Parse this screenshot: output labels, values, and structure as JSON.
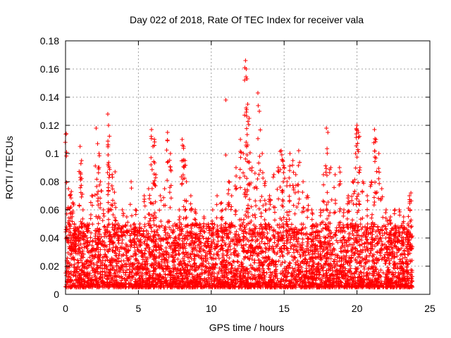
{
  "chart_data": {
    "type": "scatter",
    "title": "Day 022 of 2018, Rate Of TEC Index for receiver vala",
    "xlabel": "GPS time / hours",
    "ylabel": "ROTI / TECUs",
    "xlim": [
      0,
      25
    ],
    "ylim": [
      0,
      0.18
    ],
    "xticks": [
      0,
      5,
      10,
      15,
      20,
      25
    ],
    "xtick_labels": [
      "0",
      "5",
      "10",
      "15",
      "20",
      "25"
    ],
    "yticks": [
      0,
      0.02,
      0.04,
      0.06,
      0.08,
      0.1,
      0.12,
      0.14,
      0.16,
      0.18
    ],
    "ytick_labels": [
      "0",
      "0.02",
      "0.04",
      "0.06",
      "0.08",
      "0.1",
      "0.12",
      "0.14",
      "0.16",
      "0.18"
    ],
    "grid": true,
    "marker": "+",
    "series": [
      {
        "name": "ROTI",
        "color": "#ff0000",
        "x": [
          0.05,
          0.2,
          0.3,
          0.4,
          0.5,
          0.6,
          0.7,
          0.9,
          1.0,
          1.1,
          1.2,
          1.5,
          1.8,
          2.1,
          2.2,
          2.25,
          2.3,
          2.4,
          2.6,
          2.9,
          2.95,
          3.0,
          3.2,
          3.4,
          3.6,
          3.9,
          4.2,
          4.5,
          4.8,
          5.1,
          5.4,
          5.7,
          5.9,
          6.0,
          6.1,
          6.2,
          6.5,
          6.8,
          7.0,
          7.2,
          7.5,
          7.8,
          8.0,
          8.1,
          8.2,
          8.3,
          8.6,
          8.9,
          9.2,
          9.5,
          9.8,
          10.1,
          10.4,
          10.7,
          11.0,
          11.2,
          11.4,
          11.7,
          12.0,
          12.2,
          12.35,
          12.4,
          12.45,
          12.5,
          12.6,
          12.8,
          13.0,
          13.2,
          13.3,
          13.5,
          13.7,
          14.0,
          14.3,
          14.6,
          14.8,
          14.9,
          15.0,
          15.2,
          15.4,
          15.6,
          15.8,
          16.0,
          16.3,
          16.6,
          16.9,
          17.2,
          17.5,
          17.7,
          17.9,
          18.0,
          18.2,
          18.5,
          18.8,
          19.1,
          19.4,
          19.7,
          19.9,
          20.0,
          20.1,
          20.2,
          20.4,
          20.7,
          21.0,
          21.2,
          21.3,
          21.5,
          21.7,
          22.0,
          22.3,
          22.6,
          22.9,
          23.2,
          23.5,
          23.6,
          23.7
        ],
        "y": [
          0.114,
          0.075,
          0.07,
          0.073,
          0.065,
          0.05,
          0.04,
          0.045,
          0.105,
          0.095,
          0.06,
          0.05,
          0.07,
          0.118,
          0.107,
          0.09,
          0.1,
          0.08,
          0.06,
          0.128,
          0.12,
          0.09,
          0.085,
          0.087,
          0.05,
          0.06,
          0.055,
          0.08,
          0.06,
          0.05,
          0.07,
          0.075,
          0.117,
          0.105,
          0.11,
          0.085,
          0.07,
          0.075,
          0.115,
          0.1,
          0.05,
          0.06,
          0.11,
          0.105,
          0.095,
          0.08,
          0.07,
          0.06,
          0.05,
          0.055,
          0.05,
          0.06,
          0.07,
          0.065,
          0.138,
          0.08,
          0.07,
          0.09,
          0.11,
          0.1,
          0.166,
          0.16,
          0.153,
          0.135,
          0.125,
          0.09,
          0.086,
          0.143,
          0.13,
          0.1,
          0.08,
          0.07,
          0.085,
          0.09,
          0.102,
          0.095,
          0.09,
          0.08,
          0.1,
          0.095,
          0.085,
          0.102,
          0.08,
          0.07,
          0.06,
          0.05,
          0.06,
          0.085,
          0.118,
          0.115,
          0.09,
          0.085,
          0.09,
          0.06,
          0.07,
          0.08,
          0.1,
          0.12,
          0.115,
          0.09,
          0.08,
          0.07,
          0.08,
          0.117,
          0.11,
          0.1,
          0.075,
          0.06,
          0.055,
          0.06,
          0.06,
          0.055,
          0.05,
          0.07,
          0.072
        ]
      }
    ],
    "dense_band": {
      "description_range_y": [
        0.005,
        0.05
      ],
      "x_range": [
        0,
        23.8
      ]
    }
  }
}
